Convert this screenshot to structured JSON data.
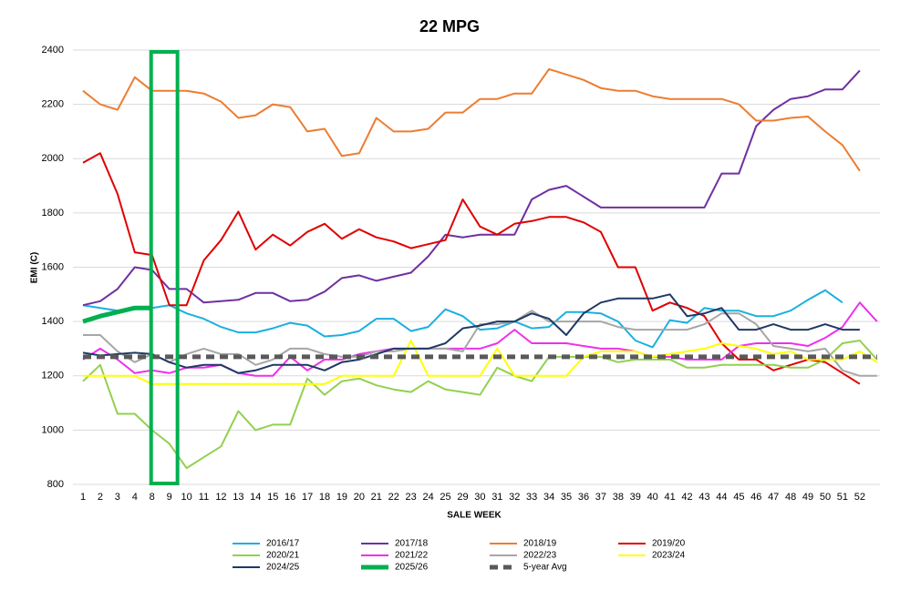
{
  "chart_data": {
    "type": "line",
    "title": "22 MPG",
    "x_label": "SALE WEEK",
    "y_label": "EMI (C)",
    "categories": [
      "1",
      "2",
      "3",
      "4",
      "8",
      "9",
      "10",
      "11",
      "12",
      "13",
      "14",
      "15",
      "16",
      "17",
      "18",
      "19",
      "20",
      "21",
      "22",
      "23",
      "24",
      "25",
      "29",
      "30",
      "31",
      "32",
      "33",
      "34",
      "35",
      "36",
      "37",
      "38",
      "39",
      "40",
      "41",
      "42",
      "43",
      "44",
      "45",
      "46",
      "47",
      "48",
      "49",
      "50",
      "51",
      "52",
      null
    ],
    "ylim": [
      800,
      2400
    ],
    "yticks": [
      800,
      1000,
      1200,
      1400,
      1600,
      1800,
      2000,
      2200,
      2400
    ],
    "grid": true,
    "legend": "bottom",
    "series": [
      {
        "name": "2016/17",
        "color": "#1ab0e0",
        "line_width": 2,
        "values": [
          1460,
          1450,
          1440,
          1445,
          1450,
          1460,
          1430,
          1410,
          1380,
          1360,
          1360,
          1375,
          1395,
          1385,
          1345,
          1350,
          1365,
          1410,
          1410,
          1365,
          1380,
          1445,
          1420,
          1370,
          1375,
          1400,
          1375,
          1380,
          1435,
          1435,
          1430,
          1400,
          1330,
          1305,
          1405,
          1395,
          1450,
          1440,
          1440,
          1420,
          1420,
          1440,
          1480,
          1515,
          1470,
          null,
          null
        ]
      },
      {
        "name": "2017/18",
        "color": "#7030a0",
        "line_width": 2,
        "values": [
          1460,
          1475,
          1520,
          1600,
          1590,
          1520,
          1520,
          1470,
          1475,
          1480,
          1505,
          1505,
          1475,
          1480,
          1510,
          1560,
          1570,
          1550,
          1565,
          1580,
          1640,
          1720,
          1710,
          1720,
          1720,
          1720,
          1850,
          1885,
          1900,
          1860,
          1820,
          1820,
          1820,
          1820,
          1820,
          1820,
          1820,
          1945,
          1945,
          2120,
          2180,
          2220,
          2230,
          2255,
          2255,
          2325,
          null
        ]
      },
      {
        "name": "2018/19",
        "color": "#ed7d31",
        "line_width": 2,
        "values": [
          2250,
          2200,
          2180,
          2300,
          2250,
          2250,
          2250,
          2240,
          2210,
          2150,
          2160,
          2200,
          2190,
          2100,
          2110,
          2010,
          2020,
          2150,
          2100,
          2100,
          2110,
          2170,
          2170,
          2220,
          2220,
          2240,
          2240,
          2330,
          2310,
          2290,
          2260,
          2250,
          2250,
          2230,
          2220,
          2220,
          2220,
          2220,
          2200,
          2140,
          2140,
          2150,
          2155,
          2100,
          2050,
          1955,
          null
        ]
      },
      {
        "name": "2019/20",
        "color": "#e00000",
        "line_width": 2,
        "values": [
          1985,
          2020,
          1870,
          1655,
          1645,
          1460,
          1460,
          1625,
          1700,
          1805,
          1665,
          1720,
          1680,
          1730,
          1760,
          1705,
          1740,
          1710,
          1695,
          1670,
          1685,
          1700,
          1850,
          1750,
          1720,
          1760,
          1770,
          1785,
          1785,
          1765,
          1730,
          1600,
          1600,
          1440,
          1470,
          1450,
          1420,
          1320,
          1260,
          1260,
          1220,
          1240,
          1260,
          1250,
          1210,
          1170,
          null
        ]
      },
      {
        "name": "2020/21",
        "color": "#92d050",
        "line_width": 2,
        "values": [
          1180,
          1240,
          1060,
          1060,
          1000,
          950,
          860,
          900,
          940,
          1070,
          1000,
          1020,
          1020,
          1190,
          1130,
          1180,
          1190,
          1165,
          1150,
          1140,
          1180,
          1150,
          1140,
          1130,
          1230,
          1200,
          1180,
          1270,
          1270,
          1270,
          1270,
          1250,
          1260,
          1260,
          1260,
          1230,
          1230,
          1240,
          1240,
          1240,
          1240,
          1230,
          1230,
          1260,
          1320,
          1330,
          1260
        ]
      },
      {
        "name": "2021/22",
        "color": "#ee30ee",
        "line_width": 2,
        "values": [
          1260,
          1300,
          1260,
          1210,
          1220,
          1210,
          1230,
          1230,
          1240,
          1210,
          1200,
          1200,
          1270,
          1220,
          1260,
          1260,
          1280,
          1290,
          1300,
          1300,
          1300,
          1300,
          1300,
          1300,
          1320,
          1370,
          1320,
          1320,
          1320,
          1310,
          1300,
          1300,
          1290,
          1270,
          1270,
          1260,
          1260,
          1260,
          1310,
          1320,
          1320,
          1320,
          1310,
          1340,
          1380,
          1470,
          1400
        ]
      },
      {
        "name": "2022/23",
        "color": "#a6a6a6",
        "line_width": 2,
        "values": [
          1350,
          1350,
          1290,
          1250,
          1280,
          1250,
          1280,
          1300,
          1280,
          1280,
          1240,
          1260,
          1300,
          1300,
          1280,
          1270,
          1270,
          1290,
          1290,
          1300,
          1300,
          1300,
          1290,
          1390,
          1390,
          1400,
          1440,
          1400,
          1400,
          1400,
          1400,
          1380,
          1370,
          1370,
          1370,
          1370,
          1390,
          1430,
          1430,
          1390,
          1310,
          1300,
          1290,
          1300,
          1220,
          1200,
          1200
        ]
      },
      {
        "name": "2023/24",
        "color": "#ffff00",
        "line_width": 2,
        "values": [
          1200,
          1200,
          1200,
          1200,
          1170,
          1170,
          1170,
          1170,
          1170,
          1170,
          1170,
          1170,
          1170,
          1170,
          1170,
          1200,
          1200,
          1200,
          1200,
          1330,
          1200,
          1200,
          1200,
          1200,
          1300,
          1200,
          1200,
          1200,
          1200,
          1270,
          1290,
          1290,
          1290,
          1270,
          1280,
          1290,
          1300,
          1320,
          1310,
          1300,
          1280,
          1290,
          1260,
          1260,
          1260,
          1290,
          1250
        ]
      },
      {
        "name": "2024/25",
        "color": "#203864",
        "line_width": 2,
        "values": [
          1285,
          1275,
          1280,
          1285,
          1280,
          1250,
          1230,
          1240,
          1240,
          1210,
          1220,
          1240,
          1240,
          1240,
          1220,
          1250,
          1260,
          1280,
          1300,
          1300,
          1300,
          1320,
          1375,
          1385,
          1400,
          1400,
          1430,
          1410,
          1350,
          1430,
          1470,
          1485,
          1485,
          1485,
          1500,
          1420,
          1430,
          1450,
          1370,
          1370,
          1390,
          1370,
          1370,
          1390,
          1370,
          1370,
          null
        ]
      },
      {
        "name": "2025/26",
        "color": "#00b050",
        "line_width": 5,
        "values": [
          1400,
          1420,
          1435,
          1450,
          1450,
          null,
          null,
          null,
          null,
          null,
          null,
          null,
          null,
          null,
          null,
          null,
          null,
          null,
          null,
          null,
          null,
          null,
          null,
          null,
          null,
          null,
          null,
          null,
          null,
          null,
          null,
          null,
          null,
          null,
          null,
          null,
          null,
          null,
          null,
          null,
          null,
          null,
          null,
          null,
          null,
          null,
          null
        ]
      },
      {
        "name": "5-year Avg",
        "color": "#595959",
        "line_width": 5,
        "dashed": true,
        "values": [
          1270,
          1270,
          1270,
          1270,
          1270,
          1270,
          1270,
          1270,
          1270,
          1270,
          1270,
          1270,
          1270,
          1270,
          1270,
          1270,
          1270,
          1270,
          1270,
          1270,
          1270,
          1270,
          1270,
          1270,
          1270,
          1270,
          1270,
          1270,
          1270,
          1270,
          1270,
          1270,
          1270,
          1270,
          1270,
          1270,
          1270,
          1270,
          1270,
          1270,
          1270,
          1270,
          1270,
          1270,
          1270,
          1270,
          1270
        ]
      }
    ]
  }
}
